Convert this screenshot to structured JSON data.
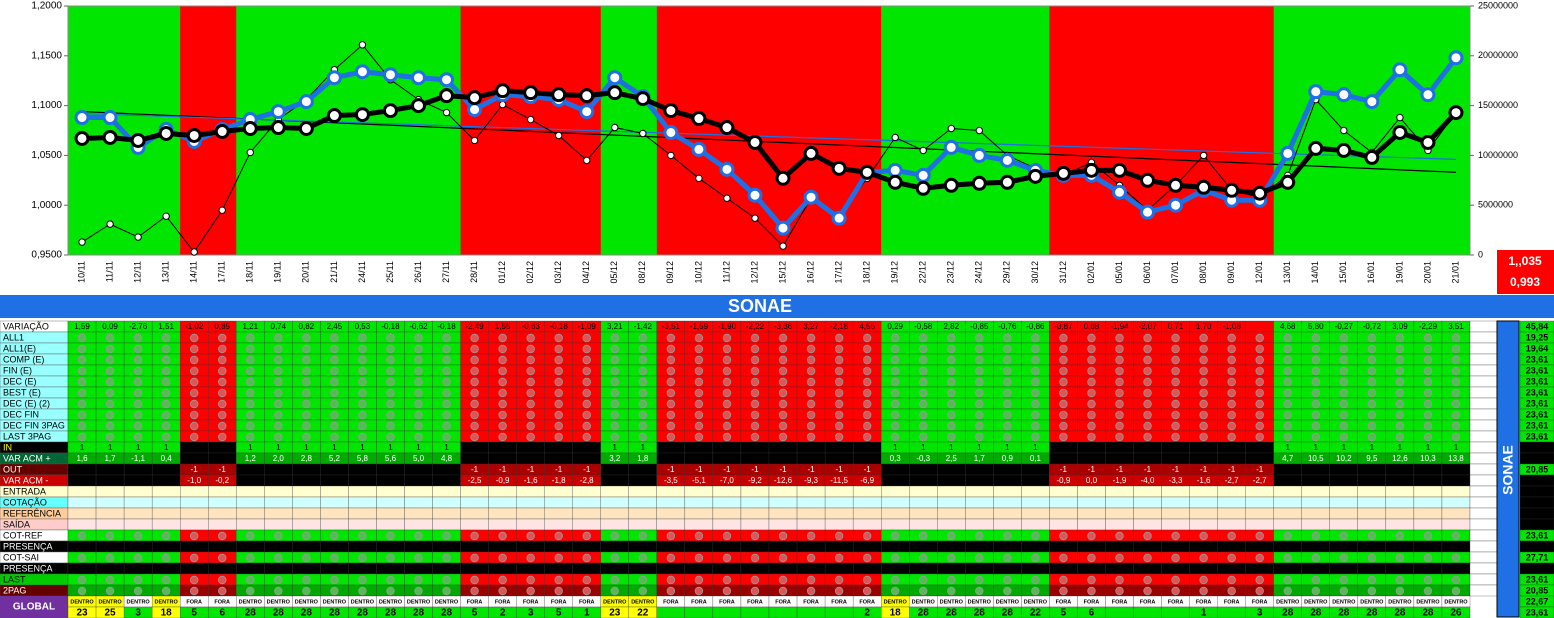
{
  "chart_data": {
    "type": "line",
    "categories": [
      "10/11",
      "11/11",
      "12/11",
      "13/11",
      "14/11",
      "17/11",
      "18/11",
      "19/11",
      "20/11",
      "21/11",
      "24/11",
      "25/11",
      "26/11",
      "27/11",
      "28/11",
      "01/12",
      "02/12",
      "03/12",
      "04/12",
      "05/12",
      "08/12",
      "09/12",
      "10/12",
      "11/12",
      "12/12",
      "15/12",
      "16/12",
      "17/12",
      "18/12",
      "19/12",
      "22/12",
      "23/12",
      "24/12",
      "29/12",
      "30/12",
      "31/12",
      "02/01",
      "05/01",
      "06/01",
      "07/01",
      "08/01",
      "09/01",
      "12/01",
      "13/01",
      "14/01",
      "15/01",
      "16/01",
      "19/01",
      "20/01",
      "21/01"
    ],
    "background_colors": [
      "#00e600",
      "#00e600",
      "#00e600",
      "#00e600",
      "#ff0000",
      "#ff0000",
      "#00e600",
      "#00e600",
      "#00e600",
      "#00e600",
      "#00e600",
      "#00e600",
      "#00e600",
      "#00e600",
      "#ff0000",
      "#ff0000",
      "#ff0000",
      "#ff0000",
      "#ff0000",
      "#00e600",
      "#00e600",
      "#ff0000",
      "#ff0000",
      "#ff0000",
      "#ff0000",
      "#ff0000",
      "#ff0000",
      "#ff0000",
      "#ff0000",
      "#00e600",
      "#00e600",
      "#00e600",
      "#00e600",
      "#00e600",
      "#00e600",
      "#ff0000",
      "#ff0000",
      "#ff0000",
      "#ff0000",
      "#ff0000",
      "#ff0000",
      "#ff0000",
      "#ff0000",
      "#00e600",
      "#00e600",
      "#00e600",
      "#00e600",
      "#00e600",
      "#00e600",
      "#00e600"
    ],
    "series": [
      {
        "color": "#1f6fe5",
        "width": 5,
        "values": [
          1.088,
          1.088,
          1.058,
          1.076,
          1.064,
          1.076,
          1.086,
          1.094,
          1.104,
          1.128,
          1.134,
          1.131,
          1.128,
          1.126,
          1.096,
          1.111,
          1.109,
          1.106,
          1.094,
          1.128,
          1.109,
          1.073,
          1.056,
          1.036,
          1.01,
          0.977,
          1.008,
          0.987,
          1.033,
          1.035,
          1.03,
          1.058,
          1.05,
          1.045,
          1.035,
          1.03,
          1.03,
          1.013,
          0.993,
          1.0,
          1.015,
          1.005,
          1.005,
          1.052,
          1.114,
          1.111,
          1.104,
          1.136,
          1.111,
          1.148
        ]
      },
      {
        "color": "#000000",
        "width": 5,
        "values": [
          1.067,
          1.068,
          1.065,
          1.072,
          1.07,
          1.074,
          1.077,
          1.078,
          1.077,
          1.09,
          1.091,
          1.095,
          1.1,
          1.11,
          1.108,
          1.115,
          1.113,
          1.111,
          1.11,
          1.113,
          1.107,
          1.095,
          1.087,
          1.078,
          1.063,
          1.027,
          1.052,
          1.037,
          1.033,
          1.023,
          1.017,
          1.02,
          1.022,
          1.023,
          1.029,
          1.032,
          1.035,
          1.035,
          1.025,
          1.02,
          1.018,
          1.015,
          1.012,
          1.023,
          1.057,
          1.055,
          1.048,
          1.073,
          1.063,
          1.093
        ]
      },
      {
        "color": "#000000",
        "width": 1,
        "axis": "y2",
        "values": [
          1300000,
          3100000,
          1800000,
          3900000,
          300000,
          4500000,
          10300000,
          13600000,
          15600000,
          18600000,
          21100000,
          17600000,
          15600000,
          14300000,
          11500000,
          15100000,
          13600000,
          12000000,
          9500000,
          12800000,
          12200000,
          10000000,
          7700000,
          5700000,
          3700000,
          900000,
          5700000,
          4000000,
          7700000,
          11800000,
          10500000,
          12700000,
          12500000,
          10000000,
          8700000,
          8000000,
          9300000,
          7000000,
          4500000,
          7000000,
          10000000,
          6500000,
          5800000,
          8000000,
          15600000,
          12500000,
          10300000,
          13800000,
          10500000,
          14300000
        ]
      }
    ],
    "trendlines": [
      {
        "color": "#000000",
        "values": [
          1.094,
          1.033
        ]
      },
      {
        "color": "#1f6fe5",
        "values": [
          1.092,
          1.046
        ]
      }
    ],
    "ylim": [
      0.95,
      1.2
    ],
    "yticks": [
      {
        "value": 0.95,
        "label": "0,9500"
      },
      {
        "value": 1.0,
        "label": "1,0000"
      },
      {
        "value": 1.05,
        "label": "1,0500"
      },
      {
        "value": 1.1,
        "label": "1,1000"
      },
      {
        "value": 1.15,
        "label": "1,1500"
      },
      {
        "value": 1.2,
        "label": "1,2000"
      }
    ],
    "y2lim": [
      0,
      25000000
    ],
    "y2ticks": [
      0,
      5000000,
      10000000,
      15000000,
      20000000,
      25000000
    ],
    "annotations": [
      "1,,035",
      "0,993"
    ]
  },
  "table": {
    "title": "SONAE",
    "row_labels": [
      "VARIAÇÃO",
      "ALL1",
      "ALL1(E)",
      "COMP (E)",
      "FIN (E)",
      "DEC (E)",
      "BEST (E)",
      "DEC (E) (2)",
      "DEC FIN",
      "DEC FIN 3PAG",
      "LAST 3PAG",
      "IN",
      "VAR ACM +",
      "OUT",
      "VAR ACM -",
      "ENTRADA",
      "COTAÇÃO",
      "REFERÊNCIA",
      "SAÍDA",
      "COT-REF",
      "PRESENÇA",
      "COT-SAI",
      "PRESENÇA",
      "LAST",
      "2PAG",
      "GLOBAL"
    ],
    "variacao": [
      "1,59",
      "0,09",
      "-2,76",
      "1,51",
      "-1,02",
      "0,85",
      "1,21",
      "0,74",
      "0,82",
      "2,45",
      "0,53",
      "-0,18",
      "-0,62",
      "-0,18",
      "-2,49",
      "1,55",
      "-0,63",
      "-0,18",
      "-1,09",
      "3,21",
      "-1,42",
      "-3,51",
      "-1,59",
      "-1,90",
      "-2,22",
      "-3,36",
      "3,27",
      "-2,18",
      "4,56",
      "0,29",
      "-0,58",
      "2,82",
      "-0,85",
      "-0,76",
      "-0,86",
      "-0,87",
      "0,88",
      "-1,94",
      "-2,07",
      "0,71",
      "1,70",
      "-1,08",
      null,
      "4,68",
      "5,80",
      "-0,27",
      "-0,72",
      "3,09",
      "-2,29",
      "3,51"
    ],
    "in": [
      1,
      1,
      1,
      1,
      null,
      null,
      1,
      1,
      1,
      1,
      1,
      1,
      1,
      1,
      null,
      null,
      null,
      null,
      null,
      1,
      1,
      null,
      null,
      null,
      null,
      null,
      null,
      null,
      null,
      1,
      1,
      1,
      1,
      1,
      1,
      null,
      null,
      null,
      null,
      null,
      null,
      null,
      null,
      1,
      1,
      1,
      1,
      1,
      1,
      1
    ],
    "var_acm_plus": [
      "1,6",
      "1,7",
      "-1,1",
      "0,4",
      null,
      null,
      "1,2",
      "2,0",
      "2,8",
      "5,2",
      "5,8",
      "5,6",
      "5,0",
      "4,8",
      null,
      null,
      null,
      null,
      null,
      "3,2",
      "1,8",
      null,
      null,
      null,
      null,
      null,
      null,
      null,
      null,
      "0,3",
      "-0,3",
      "2,5",
      "1,7",
      "0,9",
      "0,1",
      null,
      null,
      null,
      null,
      null,
      null,
      null,
      null,
      "4,7",
      "10,5",
      "10,2",
      "9,5",
      "12,6",
      "10,3",
      "13,8"
    ],
    "out": [
      null,
      null,
      null,
      null,
      -1,
      -1,
      null,
      null,
      null,
      null,
      null,
      null,
      null,
      null,
      -1,
      -1,
      -1,
      -1,
      -1,
      null,
      null,
      -1,
      -1,
      -1,
      -1,
      -1,
      -1,
      -1,
      -1,
      null,
      null,
      null,
      null,
      null,
      null,
      -1,
      -1,
      -1,
      -1,
      -1,
      -1,
      -1,
      -1,
      null,
      null,
      null,
      null,
      null,
      null,
      null
    ],
    "var_acm_minus": [
      null,
      null,
      null,
      null,
      "-1,0",
      "-0,2",
      null,
      null,
      null,
      null,
      null,
      null,
      null,
      null,
      "-2,5",
      "-0,9",
      "-1,6",
      "-1,8",
      "-2,8",
      null,
      null,
      "-3,5",
      "-5,1",
      "-7,0",
      "-9,2",
      "-12,6",
      "-9,3",
      "-11,5",
      "-6,9",
      null,
      null,
      null,
      null,
      null,
      null,
      "-0,9",
      "0,0",
      "-1,9",
      "-4,0",
      "-3,3",
      "-1,6",
      "-2,7",
      "-2,7",
      null,
      null,
      null,
      null,
      null,
      null,
      null
    ],
    "status": [
      "DENTRO",
      "DENTRO",
      "DENTRO",
      "DENTRO",
      "FORA",
      "FORA",
      "DENTRO",
      "DENTRO",
      "DENTRO",
      "DENTRO",
      "DENTRO",
      "DENTRO",
      "DENTRO",
      "DENTRO",
      "FORA",
      "FORA",
      "FORA",
      "FORA",
      "FORA",
      "DENTRO",
      "DENTRO",
      "FORA",
      "FORA",
      "FORA",
      "FORA",
      "FORA",
      "FORA",
      "FORA",
      "FORA",
      "DENTRO",
      "DENTRO",
      "DENTRO",
      "DENTRO",
      "DENTRO",
      "DENTRO",
      "FORA",
      "FORA",
      "FORA",
      "FORA",
      "FORA",
      "FORA",
      "FORA",
      "FORA",
      "DENTRO",
      "DENTRO",
      "DENTRO",
      "DENTRO",
      "DENTRO",
      "DENTRO",
      "DENTRO"
    ],
    "global": [
      23,
      25,
      3,
      18,
      5,
      6,
      28,
      28,
      28,
      28,
      28,
      28,
      28,
      28,
      5,
      2,
      3,
      5,
      1,
      23,
      22,
      null,
      null,
      null,
      null,
      null,
      null,
      null,
      2,
      18,
      28,
      28,
      28,
      28,
      22,
      5,
      6,
      null,
      null,
      null,
      1,
      null,
      3,
      28,
      28,
      28,
      28,
      28,
      28,
      26
    ],
    "totals": [
      "45,84",
      "19,25",
      "19,64",
      "23,61",
      "23,61",
      "23,61",
      "23,61",
      "23,61",
      "23,61",
      "23,61",
      "23,61",
      null,
      null,
      "20,85",
      null,
      null,
      null,
      null,
      null,
      "23,61",
      null,
      "27,71",
      null,
      "23,61",
      "20,85"
    ],
    "global_totals": [
      "22,67",
      "23,61"
    ]
  }
}
